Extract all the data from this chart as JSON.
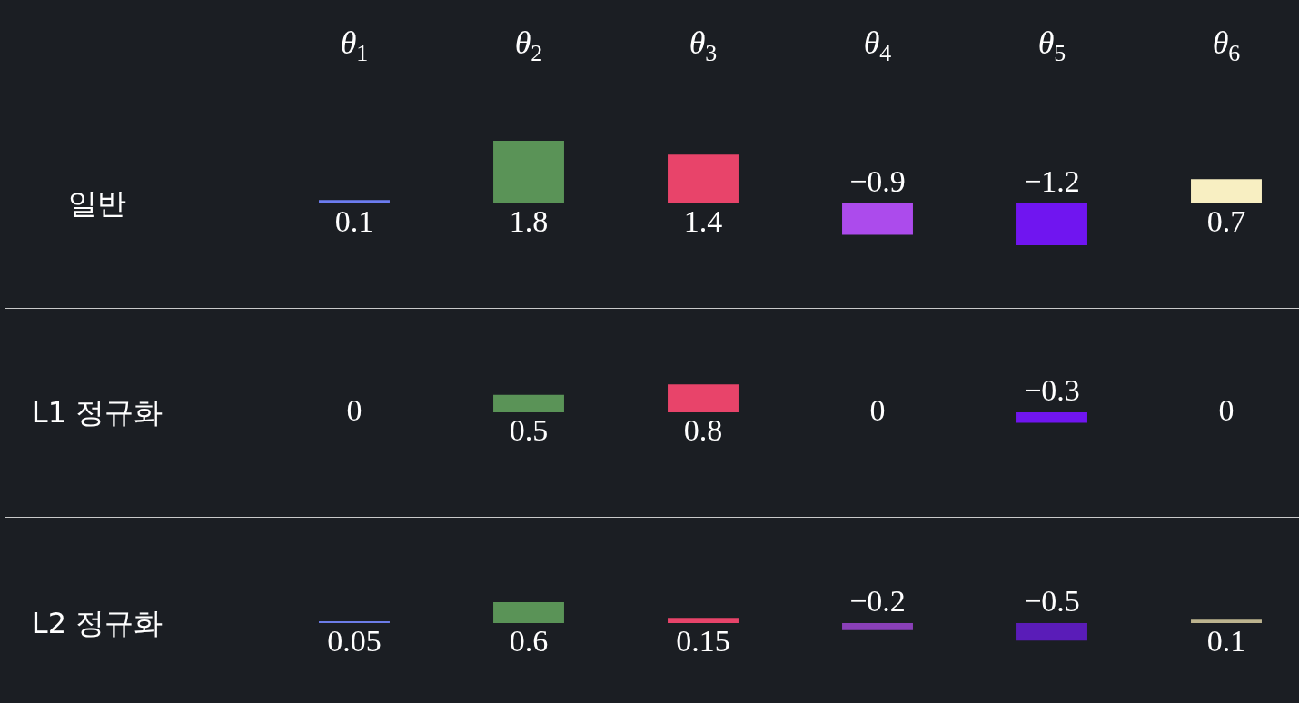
{
  "chart_data": [
    {
      "type": "bar",
      "title": "일반",
      "categories": [
        "θ$_{1}$",
        "θ$_{2}$",
        "θ$_{3}$",
        "θ$_{4}$",
        "θ$_{5}$",
        "θ$_{6}$"
      ],
      "values": [
        0.1,
        1.8,
        1.4,
        -0.9,
        -1.2,
        0.7
      ],
      "value_labels": [
        "0.1",
        "1.8",
        "1.4",
        "−0.9",
        "−1.2",
        "0.7"
      ],
      "colors": [
        "#6c7cf0",
        "#5a9357",
        "#e8446a",
        "#ac4bec",
        "#7015f0",
        "#f8efc2"
      ],
      "tick_labels": "x"
    },
    {
      "type": "bar",
      "title": "L1 정규화",
      "categories": [
        null,
        null,
        null,
        null,
        null,
        null
      ],
      "values": [
        0,
        0.5,
        0.8,
        0,
        -0.3,
        0
      ],
      "value_labels": [
        "0",
        "0.5",
        "0.8",
        "0",
        "−0.3",
        "0"
      ],
      "colors": [
        "#6c7cf0",
        "#5a9357",
        "#e8446a",
        "#ac4bec",
        "#7015f0",
        "#f8efc2"
      ]
    },
    {
      "type": "bar",
      "title": "L2 정규화",
      "categories": [
        null,
        null,
        null,
        null,
        null,
        null
      ],
      "values": [
        0.05,
        0.6,
        0.15,
        -0.2,
        -0.5,
        0.1
      ],
      "value_labels": [
        "0.05",
        "0.6",
        "0.15",
        "−0.2",
        "−0.5",
        "0.1"
      ],
      "colors": [
        "#6c7ce8",
        "#5a9357",
        "#e8446a",
        "#8a40b8",
        "#5a1cb8",
        "#bdb48f"
      ]
    }
  ]
}
